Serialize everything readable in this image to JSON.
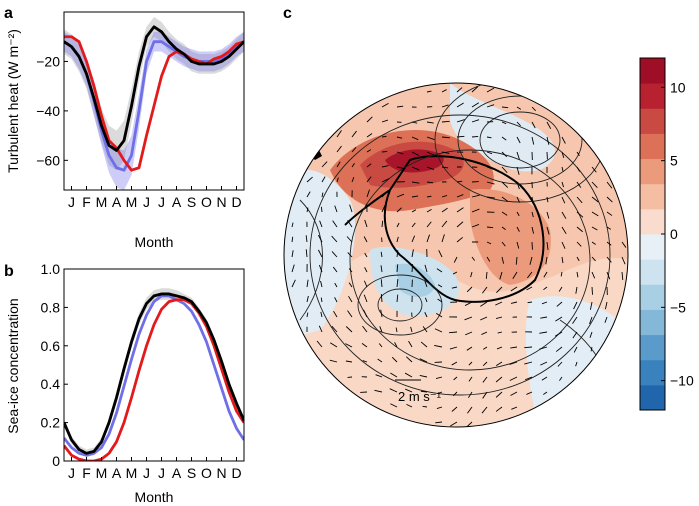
{
  "panel_labels": {
    "a": "a",
    "b": "b",
    "c": "c"
  },
  "chart_data": [
    {
      "panel": "a",
      "type": "line",
      "xlabel": "Month",
      "ylabel": "Turbulent heat (W m⁻²)",
      "xticks": [
        "J",
        "F",
        "M",
        "A",
        "M",
        "J",
        "J",
        "A",
        "S",
        "O",
        "N",
        "D"
      ],
      "yticks": [
        "−20",
        "−40",
        "−60"
      ],
      "ytick_values": [
        -20,
        -40,
        -60
      ],
      "xlim": [
        0,
        12
      ],
      "ylim": [
        -72,
        0
      ],
      "x": [
        0.0,
        0.5,
        1.0,
        1.5,
        2.0,
        2.5,
        3.0,
        3.5,
        4.0,
        4.5,
        5.0,
        5.5,
        6.0,
        6.5,
        7.0,
        7.5,
        8.0,
        8.5,
        9.0,
        9.5,
        10.0,
        10.5,
        11.0,
        11.5,
        12.0
      ],
      "series": [
        {
          "color": "#999999",
          "values": [
            -12,
            -14,
            -18,
            -25,
            -35,
            -46,
            -54,
            -56,
            -52,
            -38,
            -22,
            -10,
            -6,
            -8,
            -12,
            -15,
            -17,
            -20,
            -21,
            -21,
            -21,
            -20,
            -18,
            -15,
            -12
          ],
          "band": [
            5,
            5,
            6,
            6,
            7,
            7,
            8,
            8,
            8,
            7,
            6,
            4,
            4,
            4,
            4,
            4,
            4,
            4,
            4,
            4,
            4,
            4,
            4,
            4,
            4
          ]
        },
        {
          "color": "#6f6fe8",
          "values": [
            -12,
            -14,
            -18,
            -25,
            -36,
            -48,
            -58,
            -63,
            -64,
            -58,
            -40,
            -20,
            -12,
            -12,
            -14,
            -16,
            -18,
            -19,
            -20,
            -20,
            -20,
            -19,
            -17,
            -14,
            -12
          ],
          "band": [
            4,
            4,
            5,
            5,
            6,
            6,
            7,
            8,
            8,
            8,
            7,
            5,
            4,
            4,
            4,
            4,
            4,
            4,
            4,
            4,
            4,
            4,
            4,
            4,
            4
          ]
        },
        {
          "color": "#e31a1c",
          "values": [
            -10,
            -10,
            -12,
            -20,
            -30,
            -42,
            -52,
            -55,
            -60,
            -64,
            -63,
            -50,
            -38,
            -26,
            -18,
            -16,
            -17,
            -19,
            -20,
            -21,
            -19,
            -18,
            -16,
            -13,
            -12
          ]
        },
        {
          "color": "#000000",
          "values": [
            -12,
            -14,
            -18,
            -25,
            -35,
            -46,
            -54,
            -56,
            -52,
            -38,
            -22,
            -10,
            -6,
            -8,
            -12,
            -15,
            -17,
            -20,
            -21,
            -21,
            -21,
            -20,
            -18,
            -15,
            -12
          ]
        }
      ]
    },
    {
      "panel": "b",
      "type": "line",
      "xlabel": "Month",
      "ylabel": "Sea-ice concentration",
      "xticks": [
        "J",
        "F",
        "M",
        "A",
        "M",
        "J",
        "J",
        "A",
        "S",
        "O",
        "N",
        "D"
      ],
      "yticks": [
        "0",
        "0.2",
        "0.4",
        "0.6",
        "0.8",
        "1.0"
      ],
      "ytick_values": [
        0,
        0.2,
        0.4,
        0.6,
        0.8,
        1.0
      ],
      "xlim": [
        0,
        12
      ],
      "ylim": [
        0,
        1.0
      ],
      "x": [
        0.0,
        0.5,
        1.0,
        1.5,
        2.0,
        2.5,
        3.0,
        3.5,
        4.0,
        4.5,
        5.0,
        5.5,
        6.0,
        6.5,
        7.0,
        7.5,
        8.0,
        8.5,
        9.0,
        9.5,
        10.0,
        10.5,
        11.0,
        11.5,
        12.0
      ],
      "series": [
        {
          "color": "#999999",
          "values": [
            0.2,
            0.11,
            0.06,
            0.04,
            0.05,
            0.1,
            0.2,
            0.33,
            0.48,
            0.62,
            0.74,
            0.82,
            0.86,
            0.87,
            0.87,
            0.86,
            0.85,
            0.83,
            0.78,
            0.72,
            0.63,
            0.52,
            0.4,
            0.3,
            0.21
          ],
          "band": [
            0.02,
            0.02,
            0.02,
            0.02,
            0.02,
            0.02,
            0.02,
            0.03,
            0.03,
            0.03,
            0.03,
            0.03,
            0.03,
            0.03,
            0.03,
            0.03,
            0.02,
            0.02,
            0.02,
            0.02,
            0.02,
            0.02,
            0.02,
            0.02,
            0.02
          ]
        },
        {
          "color": "#6f6fe8",
          "values": [
            0.12,
            0.07,
            0.04,
            0.03,
            0.04,
            0.07,
            0.14,
            0.25,
            0.39,
            0.53,
            0.66,
            0.76,
            0.83,
            0.86,
            0.86,
            0.84,
            0.82,
            0.78,
            0.71,
            0.62,
            0.5,
            0.38,
            0.26,
            0.17,
            0.11
          ]
        },
        {
          "color": "#e31a1c",
          "values": [
            0.08,
            0.03,
            0.01,
            0.0,
            0.0,
            0.01,
            0.04,
            0.1,
            0.2,
            0.33,
            0.47,
            0.6,
            0.71,
            0.79,
            0.83,
            0.84,
            0.84,
            0.82,
            0.77,
            0.7,
            0.6,
            0.48,
            0.36,
            0.26,
            0.2
          ]
        },
        {
          "color": "#000000",
          "values": [
            0.2,
            0.11,
            0.06,
            0.04,
            0.05,
            0.1,
            0.2,
            0.33,
            0.48,
            0.62,
            0.74,
            0.82,
            0.86,
            0.87,
            0.87,
            0.86,
            0.85,
            0.83,
            0.78,
            0.72,
            0.63,
            0.52,
            0.4,
            0.3,
            0.21
          ]
        }
      ]
    },
    {
      "panel": "c",
      "type": "heatmap",
      "projection": "south-polar-stereographic",
      "colorbar": {
        "ticks": [
          "10",
          "5",
          "0",
          "−5",
          "−10"
        ],
        "tick_values": [
          10,
          5,
          0,
          -5,
          -10
        ],
        "range": [
          -12,
          12
        ],
        "colors": [
          "#2166ac",
          "#3a82bd",
          "#5a9bcb",
          "#84b8d9",
          "#a9cfe4",
          "#cde3ef",
          "#e7f0f6",
          "#f9dccd",
          "#f5bda2",
          "#eb9b7c",
          "#dc7157",
          "#c94a42",
          "#b82230",
          "#9e0f27"
        ]
      },
      "wind_reference": "2 m s⁻¹",
      "regions": [
        {
          "value": 9,
          "note": "warm anomaly"
        },
        {
          "value": 6,
          "note": "warm anomaly"
        },
        {
          "value": 3,
          "note": "warm anomaly"
        },
        {
          "value": 1.5,
          "note": "warm anomaly"
        },
        {
          "value": -1,
          "note": "weak cold anomaly"
        },
        {
          "value": -3,
          "note": "cold anomaly"
        }
      ]
    }
  ]
}
